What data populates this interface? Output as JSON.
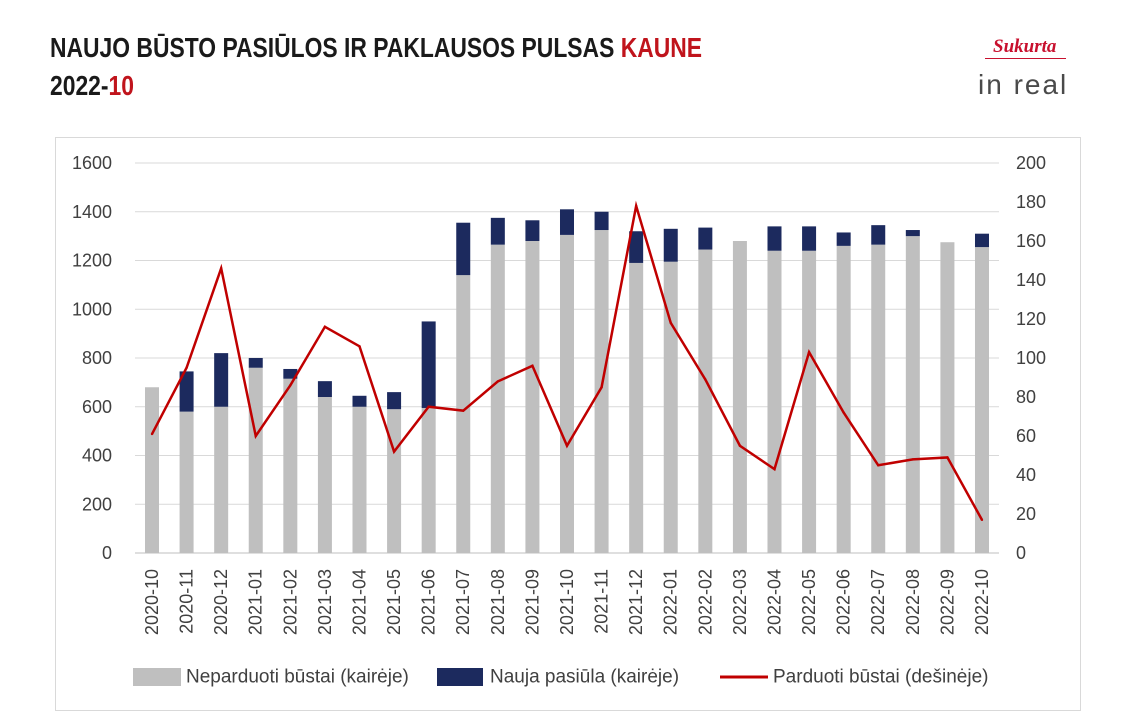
{
  "logo": {
    "tagline": "Sukurta",
    "brand": "in real",
    "tagline_color": "#c8102e",
    "brand_color": "#4a4a4a"
  },
  "colors": {
    "title": "#1a1a1a",
    "accent": "#c0141c"
  },
  "chart_data": {
    "type": "bar",
    "title": "NAUJO BŪSTO PASIŪLOS IR PAKLAUSOS PULSAS",
    "title_highlight": "KAUNE",
    "subtitle": "2022-",
    "subtitle_highlight": "10",
    "categories": [
      "2020-10",
      "2020-11",
      "2020-12",
      "2021-01",
      "2021-02",
      "2021-03",
      "2021-04",
      "2021-05",
      "2021-06",
      "2021-07",
      "2021-08",
      "2021-09",
      "2021-10",
      "2021-11",
      "2021-12",
      "2022-01",
      "2022-02",
      "2022-03",
      "2022-04",
      "2022-05",
      "2022-06",
      "2022-07",
      "2022-08",
      "2022-09",
      "2022-10"
    ],
    "series": [
      {
        "name": "Neparduoti būstai (kairėje)",
        "type": "bar",
        "axis": "left",
        "color": "#bfbfbf",
        "values": [
          680,
          580,
          600,
          760,
          715,
          640,
          600,
          590,
          595,
          1140,
          1265,
          1280,
          1305,
          1325,
          1190,
          1195,
          1245,
          1280,
          1240,
          1240,
          1260,
          1265,
          1300,
          1275,
          1255
        ]
      },
      {
        "name": "Nauja pasiūla (kairėje)",
        "type": "bar",
        "axis": "left",
        "color": "#1c2a5e",
        "values": [
          0,
          165,
          220,
          40,
          40,
          65,
          45,
          70,
          355,
          215,
          110,
          85,
          105,
          75,
          130,
          135,
          90,
          0,
          100,
          100,
          55,
          80,
          25,
          0,
          55
        ]
      },
      {
        "name": "Parduoti būstai (dešinėje)",
        "type": "line",
        "axis": "right",
        "color": "#c00000",
        "values": [
          61,
          95,
          146,
          60,
          86,
          116,
          106,
          52,
          75,
          73,
          88,
          96,
          55,
          85,
          178,
          118,
          89,
          55,
          43,
          103,
          72,
          45,
          48,
          49,
          17
        ]
      }
    ],
    "stacked": true,
    "ylim": [
      0,
      1600
    ],
    "yticks": [
      0,
      200,
      400,
      600,
      800,
      1000,
      1200,
      1400,
      1600
    ],
    "y2lim": [
      0,
      200
    ],
    "y2ticks": [
      0,
      20,
      40,
      60,
      80,
      100,
      120,
      140,
      160,
      180,
      200
    ],
    "grid": true,
    "legend": "bottom"
  }
}
